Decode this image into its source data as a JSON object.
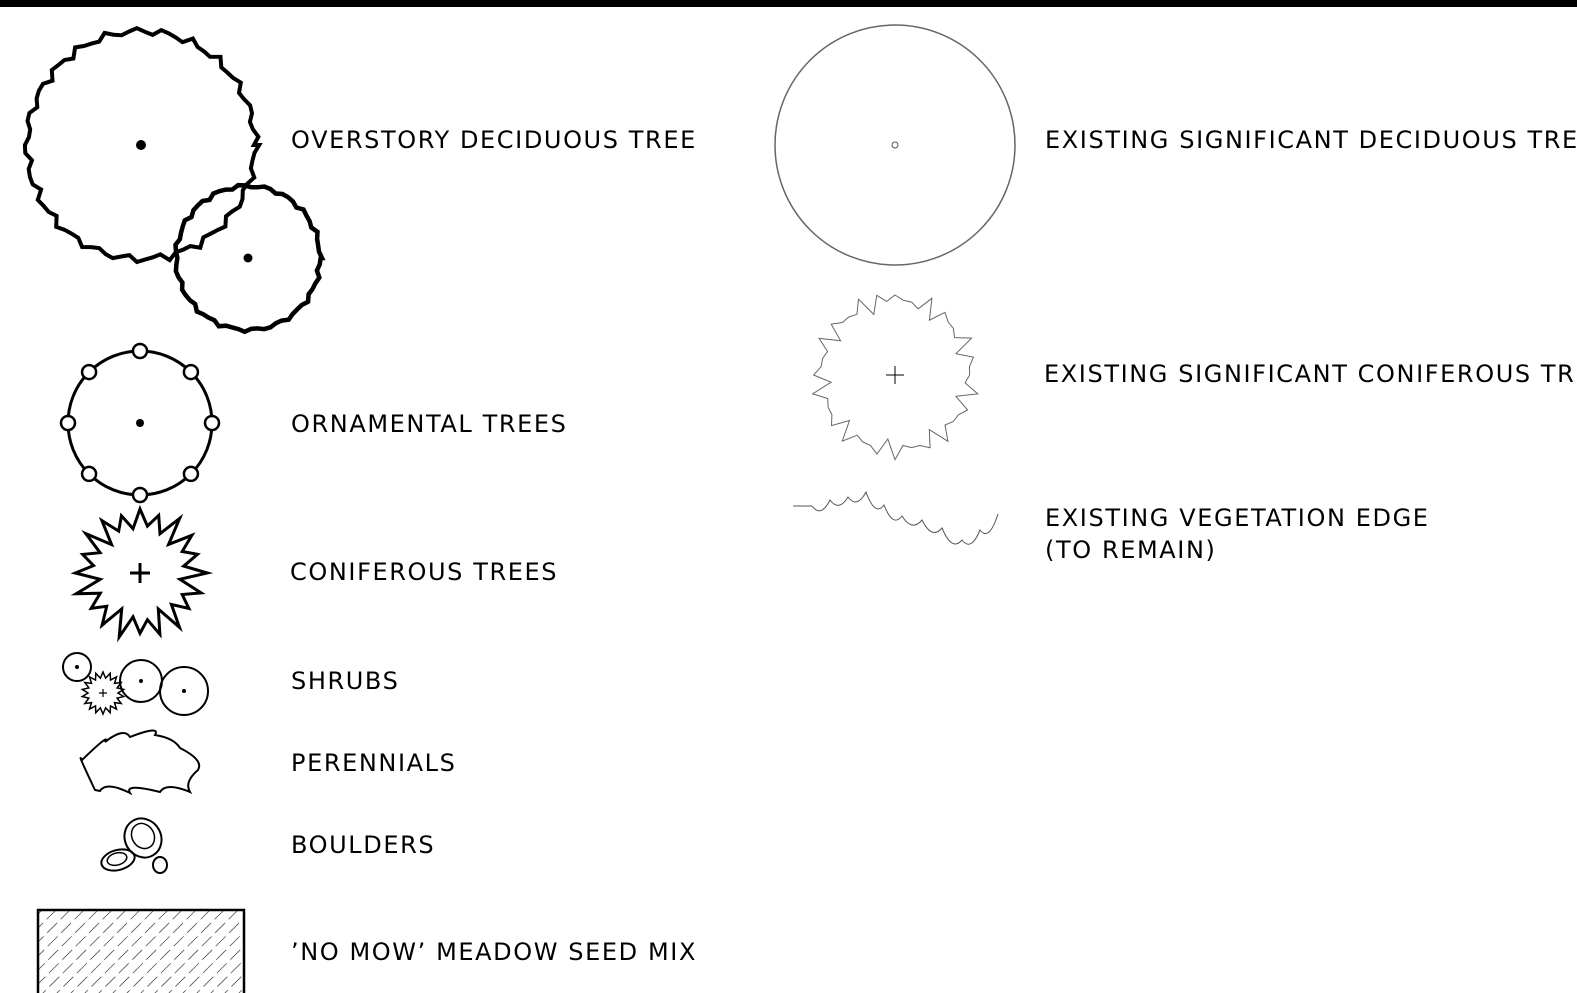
{
  "legend": {
    "left": [
      {
        "label": "OVERSTORY DECIDUOUS TREE"
      },
      {
        "label": "ORNAMENTAL TREES"
      },
      {
        "label": "CONIFEROUS TREES"
      },
      {
        "label": "SHRUBS"
      },
      {
        "label": "PERENNIALS"
      },
      {
        "label": "BOULDERS"
      },
      {
        "label": "’NO MOW’ MEADOW SEED MIX"
      }
    ],
    "right": [
      {
        "label": "EXISTING SIGNIFICANT DECIDUOUS TREE"
      },
      {
        "label": "EXISTING SIGNIFICANT CONIFEROUS TREE"
      },
      {
        "lines": [
          "EXISTING VEGETATION EDGE",
          "(TO REMAIN)"
        ]
      }
    ]
  }
}
